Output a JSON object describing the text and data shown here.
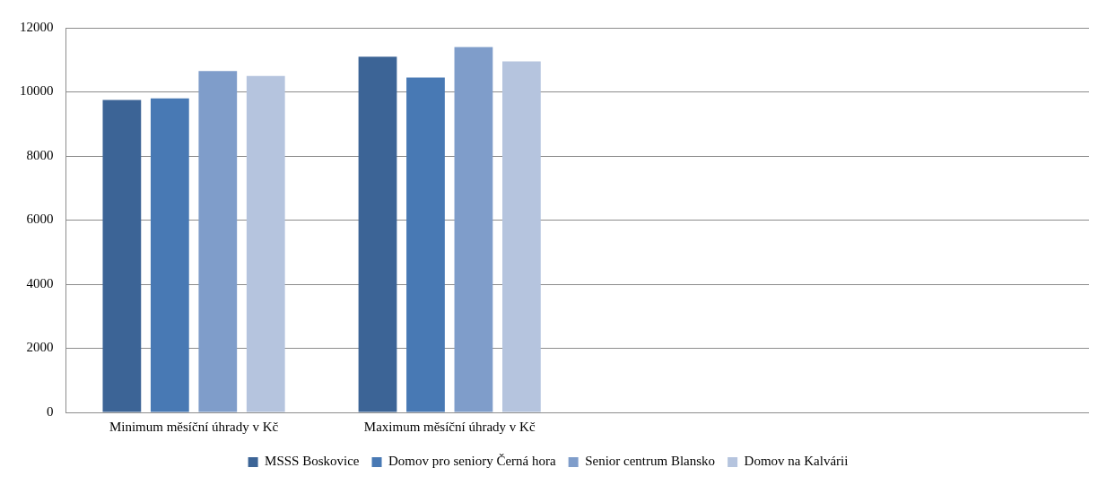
{
  "chart_data": {
    "type": "bar",
    "categories": [
      "Minimum měsíční úhrady v Kč",
      "Maximum měsíční úhrady v Kč",
      null,
      null
    ],
    "series": [
      {
        "name": "MSSS Boskovice",
        "color": "#3c6496",
        "values": [
          9750,
          11100,
          null,
          null
        ]
      },
      {
        "name": "Domov pro seniory Černá hora",
        "color": "#4879b4",
        "values": [
          9800,
          10450,
          null,
          null
        ]
      },
      {
        "name": "Senior centrum Blansko",
        "color": "#7f9dca",
        "values": [
          10650,
          11400,
          null,
          null
        ]
      },
      {
        "name": "Domov na Kalvárii",
        "color": "#b5c4de",
        "values": [
          10500,
          10950,
          null,
          null
        ]
      }
    ],
    "ylim": [
      0,
      12000
    ],
    "yticks": [
      0,
      2000,
      4000,
      6000,
      8000,
      10000,
      12000
    ],
    "grid": "y",
    "legend": "bottom"
  }
}
